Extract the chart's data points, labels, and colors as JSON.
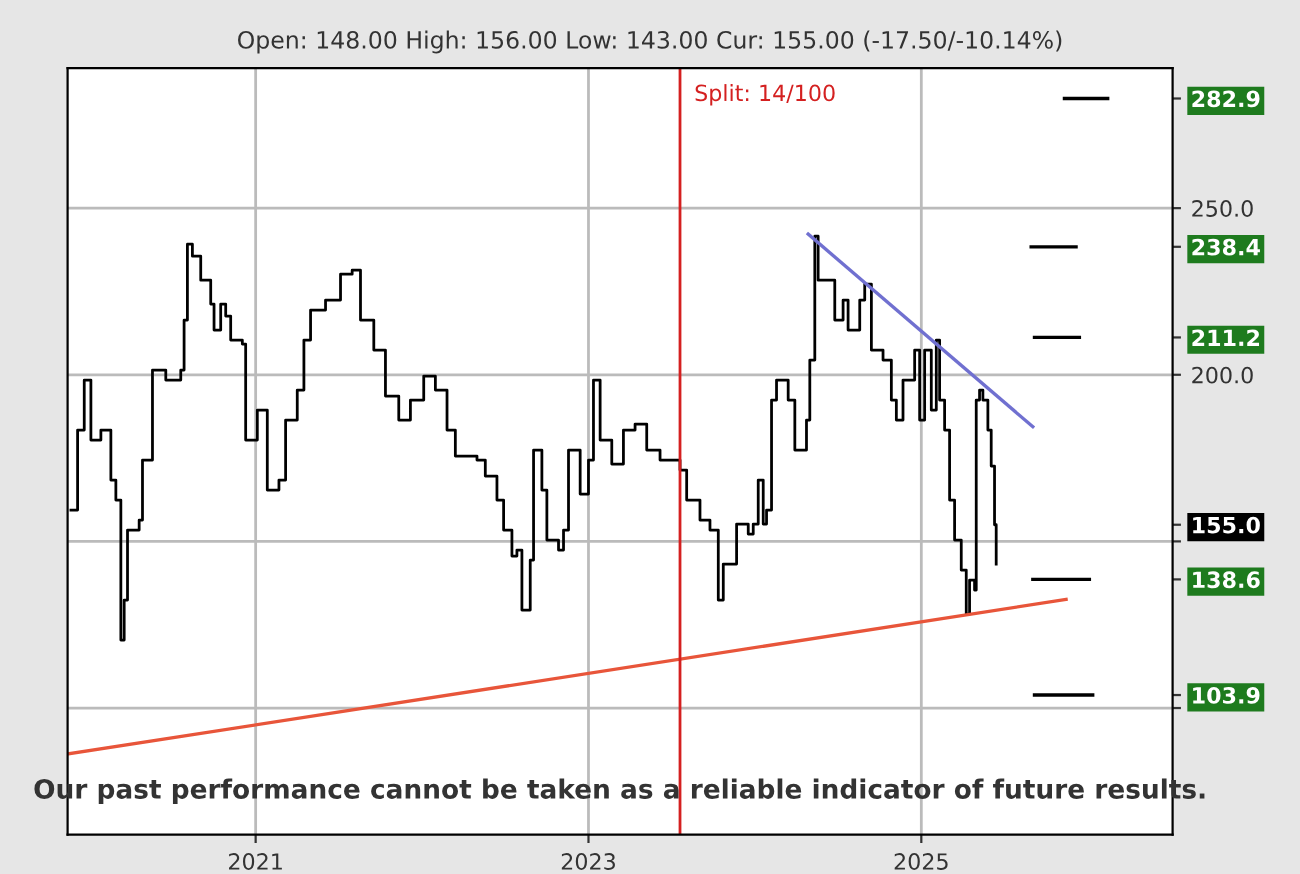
{
  "chart_data": {
    "type": "line",
    "subtitle": "Open: 148.00 High: 156.00 Low: 143.00 Cur: 155.00 (-17.50/-10.14%)",
    "annotations": [
      "Our past performance cannot be taken as a reliable indicator of future results.",
      {
        "text": "Split: 14/100",
        "x": 2023.55,
        "y": 284
      }
    ],
    "xlim": [
      2019.87,
      2026.51
    ],
    "ylim": [
      62,
      292
    ],
    "xticks": [
      {
        "value": 2021,
        "label": "2021"
      },
      {
        "value": 2023,
        "label": "2023"
      },
      {
        "value": 2025,
        "label": "2025"
      }
    ],
    "yticks": [
      {
        "value": 100,
        "label": null
      },
      {
        "value": 103.9,
        "label": "103.9"
      },
      {
        "value": 138.6,
        "label": "138.6"
      },
      {
        "value": 150,
        "label": null
      },
      {
        "value": 155.0,
        "label": "155.0"
      },
      {
        "value": 200,
        "label": "200.0"
      },
      {
        "value": 211.2,
        "label": "211.2"
      },
      {
        "value": 238.4,
        "label": "238.4"
      },
      {
        "value": 250,
        "label": "250.0"
      },
      {
        "value": 282.9,
        "label": "282.9"
      }
    ],
    "grid": true,
    "legend": false,
    "series": [
      {
        "color": "#000000",
        "type": "step",
        "x": [
          2019.89,
          2019.93,
          2019.97,
          2020.01,
          2020.07,
          2020.13,
          2020.16,
          2020.19,
          2020.21,
          2020.23,
          2020.3,
          2020.32,
          2020.38,
          2020.46,
          2020.55,
          2020.57,
          2020.59,
          2020.62,
          2020.66,
          2020.67,
          2020.73,
          2020.75,
          2020.79,
          2020.82,
          2020.85,
          2020.92,
          2020.94,
          2021.01,
          2021.07,
          2021.14,
          2021.18,
          2021.25,
          2021.29,
          2021.33,
          2021.42,
          2021.51,
          2021.58,
          2021.63,
          2021.71,
          2021.78,
          2021.86,
          2021.93,
          2022.01,
          2022.08,
          2022.15,
          2022.2,
          2022.33,
          2022.38,
          2022.45,
          2022.49,
          2022.54,
          2022.57,
          2022.6,
          2022.65,
          2022.67,
          2022.72,
          2022.75,
          2022.82,
          2022.85,
          2022.88,
          2022.95,
          2023.0,
          2023.03,
          2023.07,
          2023.14,
          2023.21,
          2023.28,
          2023.35,
          2023.43,
          2023.51,
          2023.55,
          2023.59,
          2023.67,
          2023.73,
          2023.76,
          2023.78,
          2023.81,
          2023.89,
          2023.96,
          2023.99,
          2024.02,
          2024.05,
          2024.07,
          2024.1,
          2024.13,
          2024.2,
          2024.24,
          2024.31,
          2024.33,
          2024.36,
          2024.38,
          2024.45,
          2024.48,
          2024.53,
          2024.56,
          2024.63,
          2024.66,
          2024.7,
          2024.77,
          2024.82,
          2024.85,
          2024.89,
          2024.96,
          2024.99,
          2025.02,
          2025.06,
          2025.09,
          2025.11,
          2025.14,
          2025.17,
          2025.2,
          2025.24,
          2025.27,
          2025.29,
          2025.32,
          2025.33,
          2025.35,
          2025.37,
          2025.4,
          2025.42,
          2025.44,
          2025.45
        ],
        "values": [
          159.4,
          183.4,
          198.4,
          180.4,
          183.4,
          168.4,
          162.4,
          120.4,
          132.4,
          153.4,
          156.4,
          174.4,
          201.4,
          198.4,
          201.4,
          216.4,
          239.2,
          235.6,
          235.6,
          228.4,
          221.2,
          213.4,
          221.2,
          217.6,
          210.4,
          209.2,
          180.4,
          189.4,
          165.4,
          168.4,
          186.4,
          195.4,
          210.4,
          219.4,
          222.4,
          230.2,
          231.4,
          216.4,
          207.4,
          193.6,
          186.4,
          192.4,
          199.6,
          195.4,
          183.4,
          175.6,
          174.4,
          169.6,
          162.4,
          153.4,
          145.6,
          147.4,
          129.4,
          144.4,
          177.4,
          165.4,
          150.4,
          147.4,
          153.4,
          177.4,
          164.2,
          174.4,
          198.4,
          180.4,
          173.2,
          183.4,
          185.2,
          177.4,
          174.4,
          174.4,
          171.4,
          162.4,
          156.4,
          153.4,
          153.4,
          132.4,
          143.2,
          155.2,
          152.2,
          155.2,
          168.4,
          155.2,
          159.4,
          192.4,
          198.4,
          192.4,
          177.4,
          186.4,
          204.4,
          241.6,
          228.4,
          228.4,
          216.4,
          222.4,
          213.4,
          222.4,
          227.2,
          207.4,
          204.4,
          192.4,
          186.4,
          198.4,
          207.4,
          186.4,
          207.4,
          189.4,
          210.4,
          192.4,
          183.4,
          162.4,
          150.4,
          141.4,
          128.2,
          138.4,
          135.4,
          192.4,
          195.4,
          192.4,
          183.4,
          172.6,
          155.0,
          143.2
        ]
      },
      {
        "color": "#e8553a",
        "x": [
          2019.87,
          2025.87
        ],
        "values": [
          86.2,
          132.6
        ]
      },
      {
        "color": "#7070d0",
        "x": [
          2024.32,
          2025.67
        ],
        "values": [
          242.2,
          184.4
        ]
      },
      {
        "color": "#000000",
        "x": [
          2025.86,
          2026.12
        ],
        "values": [
          282.9,
          282.9
        ]
      },
      {
        "color": "#000000",
        "x": [
          2025.66,
          2025.93
        ],
        "values": [
          238.4,
          238.4
        ]
      },
      {
        "color": "#000000",
        "x": [
          2025.68,
          2025.95
        ],
        "values": [
          211.2,
          211.2
        ]
      },
      {
        "color": "#000000",
        "x": [
          2025.67,
          2026.01
        ],
        "values": [
          138.6,
          138.6
        ]
      },
      {
        "color": "#000000",
        "x": [
          2025.68,
          2026.03
        ],
        "values": [
          103.9,
          103.9
        ]
      }
    ],
    "ref_lines": [
      {
        "axis": "x",
        "value": 2023.55,
        "color": "#d42020"
      }
    ]
  }
}
